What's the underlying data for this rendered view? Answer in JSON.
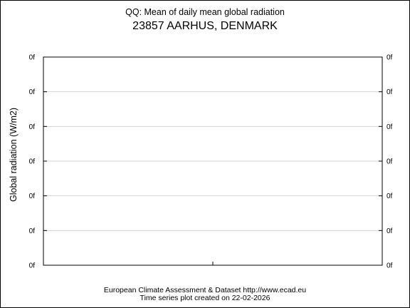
{
  "header": {
    "subtitle": "QQ: Mean of daily mean global radiation",
    "title": "23857 AARHUS, DENMARK"
  },
  "footer": {
    "line1": "European Climate Assessment & Dataset  http://www.ecad.eu",
    "line2": "Time series plot created on 22-02-2026"
  },
  "colors": {
    "gridline": "#d3d3d3",
    "axis": "#000000",
    "background": "#ffffff"
  },
  "chart_data": {
    "type": "line",
    "title": "23857 AARHUS, DENMARK",
    "subtitle": "QQ: Mean of daily mean global radiation",
    "xlabel": "",
    "ylabel": "Global radiation (W/m2)",
    "y_tick_labels": [
      "0f",
      "0f",
      "0f",
      "0f",
      "0f",
      "0f",
      "0f"
    ],
    "y_tick_labels_right": [
      "0f",
      "0f",
      "0f",
      "0f",
      "0f",
      "0f",
      "0f"
    ],
    "x_tick_labels": [],
    "series": [],
    "grid": true
  }
}
